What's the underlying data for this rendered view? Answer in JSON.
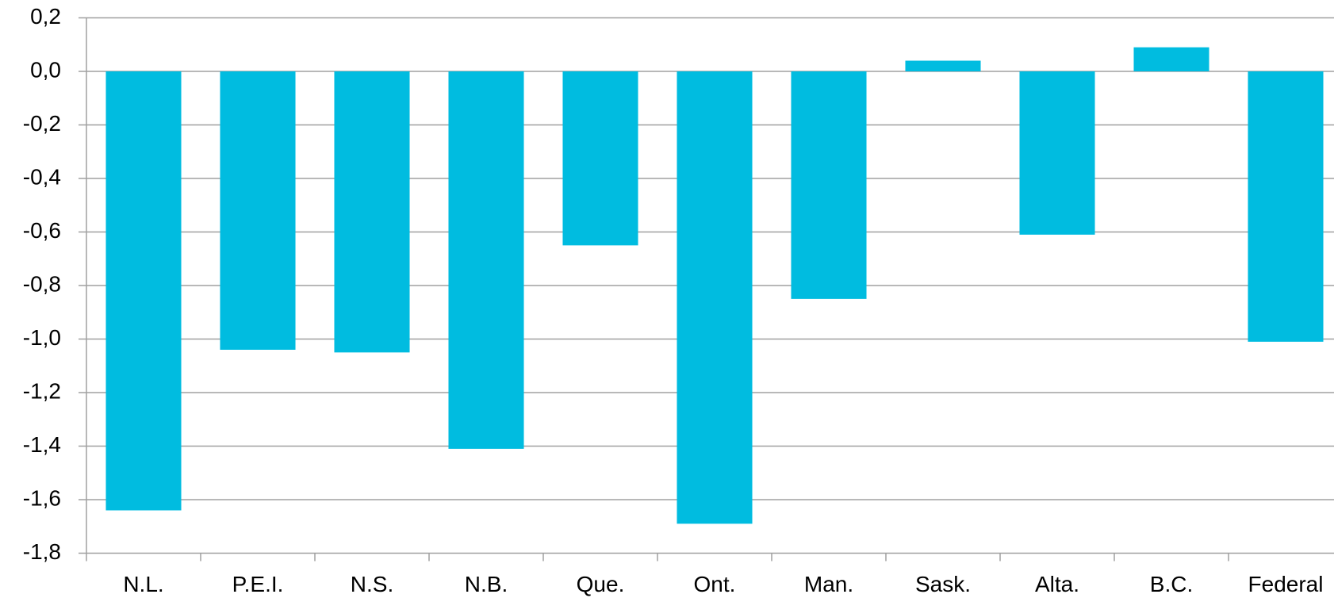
{
  "chart_data": {
    "type": "bar",
    "categories": [
      "N.L.",
      "P.E.I.",
      "N.S.",
      "N.B.",
      "Que.",
      "Ont.",
      "Man.",
      "Sask.",
      "Alta.",
      "B.C.",
      "Federal"
    ],
    "values": [
      -1.64,
      -1.04,
      -1.05,
      -1.41,
      -0.65,
      -1.69,
      -0.85,
      0.04,
      -0.61,
      0.09,
      -1.01
    ],
    "color": "#00bce0",
    "ylim": [
      -1.8,
      0.2
    ],
    "yticks": [
      {
        "value": 0.2,
        "label": "0,2"
      },
      {
        "value": 0,
        "label": "0,0"
      },
      {
        "value": -0.2,
        "label": "-0,2"
      },
      {
        "value": -0.4,
        "label": "-0,4"
      },
      {
        "value": -0.6,
        "label": "-0,6"
      },
      {
        "value": -0.8,
        "label": "-0,8"
      },
      {
        "value": -1.0,
        "label": "-1,0"
      },
      {
        "value": -1.2,
        "label": "-1,2"
      },
      {
        "value": -1.4,
        "label": "-1,4"
      },
      {
        "value": -1.6,
        "label": "-1,6"
      },
      {
        "value": -1.8,
        "label": "-1,8"
      }
    ],
    "grid": true
  }
}
